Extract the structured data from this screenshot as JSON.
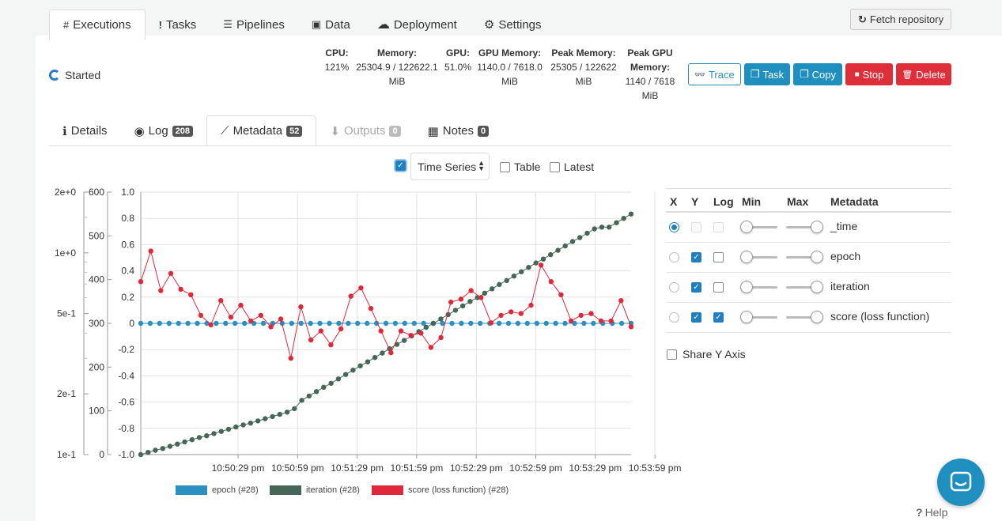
{
  "nav_tabs": [
    {
      "label": "Executions",
      "icon": "#"
    },
    {
      "label": "Tasks",
      "icon": "!"
    },
    {
      "label": "Pipelines",
      "icon": "☰"
    },
    {
      "label": "Data",
      "icon": "▣"
    },
    {
      "label": "Deployment",
      "icon": "☁"
    },
    {
      "label": "Settings",
      "icon": "⚙"
    }
  ],
  "fetch_button": {
    "label": "Fetch repository",
    "icon": "↻"
  },
  "status": {
    "label": "Started"
  },
  "stats": [
    {
      "label": "CPU:",
      "value": "121%"
    },
    {
      "label": "Memory:",
      "value": "25304.9 / 122622.1 MiB"
    },
    {
      "label": "GPU:",
      "value": "51.0%"
    },
    {
      "label": "GPU Memory:",
      "value": "1140.0 / 7618.0 MiB"
    },
    {
      "label": "Peak Memory:",
      "value": "25305 / 122622 MiB"
    },
    {
      "label": "Peak GPU Memory:",
      "value": "1140 / 7618 MiB"
    }
  ],
  "actions": {
    "trace": {
      "label": "Trace",
      "icon": "👓"
    },
    "task": {
      "label": "Task",
      "icon": "❐"
    },
    "copy": {
      "label": "Copy",
      "icon": "❐"
    },
    "stop": {
      "label": "Stop",
      "icon": "■"
    },
    "delete": {
      "label": "Delete",
      "icon": "🗑"
    }
  },
  "sub_tabs": [
    {
      "label": "Details",
      "icon": "ℹ",
      "badge": null
    },
    {
      "label": "Log",
      "icon": "◉",
      "badge": "208"
    },
    {
      "label": "Metadata",
      "icon": "⟋",
      "badge": "52"
    },
    {
      "label": "Outputs",
      "icon": "⬇",
      "badge": "0"
    },
    {
      "label": "Notes",
      "icon": "▦",
      "badge": "0"
    }
  ],
  "view": {
    "timeseries_checked": true,
    "mode": "Time Series",
    "table_label": "Table",
    "latest_label": "Latest"
  },
  "metadata_table": {
    "headers": {
      "x": "X",
      "y": "Y",
      "log": "Log",
      "min": "Min",
      "max": "Max",
      "metadata": "Metadata"
    },
    "rows": [
      {
        "name": "_time",
        "x": true,
        "y": false,
        "log": false
      },
      {
        "name": "epoch",
        "x": false,
        "y": true,
        "log": false
      },
      {
        "name": "iteration",
        "x": false,
        "y": true,
        "log": false
      },
      {
        "name": "score (loss function)",
        "x": false,
        "y": true,
        "log": true
      }
    ],
    "share_y_axis": "Share Y Axis"
  },
  "help": {
    "label": "Help"
  },
  "colors": {
    "epoch": "#2b90c0",
    "iteration": "#466758",
    "score": "#e0283b",
    "accent": "#1f8fc0",
    "danger": "#dd2e3a"
  },
  "chart_data": {
    "type": "line",
    "x_ticks": [
      "10:50:29 pm",
      "10:50:59 pm",
      "10:51:29 pm",
      "10:51:59 pm",
      "10:52:29 pm",
      "10:52:59 pm",
      "10:53:29 pm",
      "10:53:59 pm"
    ],
    "x_range_seconds": [
      -20,
      227
    ],
    "x_tick_seconds": [
      29,
      59,
      89,
      119,
      149,
      179,
      209,
      239
    ],
    "axes": [
      {
        "name": "score",
        "ticks": [
          "2e+0",
          "1e+0",
          "5e-1",
          "2e-1",
          "1e-1"
        ],
        "tick_values": [
          2,
          1,
          0.5,
          0.2,
          0.1
        ],
        "scale": "log",
        "range": [
          0.1,
          2
        ]
      },
      {
        "name": "iteration",
        "ticks": [
          "600",
          "500",
          "400",
          "300",
          "200",
          "100",
          "0"
        ],
        "range": [
          0,
          600
        ]
      },
      {
        "name": "epoch",
        "ticks": [
          "1.0",
          "0.8",
          "0.6",
          "0.4",
          "0.2",
          "0",
          "-0.2",
          "-0.4",
          "-0.6",
          "-0.8",
          "-1.0"
        ],
        "range": [
          -1,
          1
        ]
      }
    ],
    "grid": true,
    "legend": "bottom",
    "series": [
      {
        "name": "epoch (#28)",
        "axis": "epoch",
        "values": [
          0,
          0,
          0,
          0,
          0,
          0,
          0,
          0,
          0,
          0,
          0,
          0,
          0,
          0,
          0,
          0,
          0,
          0,
          0,
          0,
          0,
          0,
          0,
          0,
          0,
          0,
          0,
          0,
          0,
          0,
          0,
          0,
          0,
          0,
          0,
          0,
          0,
          0,
          0,
          0,
          0,
          0,
          0,
          0,
          0,
          0,
          0,
          0,
          0,
          0,
          0,
          0,
          0
        ]
      },
      {
        "name": "iteration (#28)",
        "axis": "iteration",
        "values": [
          0,
          5,
          10,
          14,
          19,
          24,
          29,
          34,
          39,
          43,
          48,
          53,
          58,
          63,
          68,
          72,
          77,
          82,
          87,
          92,
          97,
          105,
          124,
          134,
          144,
          154,
          163,
          173,
          183,
          193,
          203,
          212,
          222,
          232,
          242,
          252,
          261,
          271,
          281,
          291,
          300,
          310,
          320,
          330,
          340,
          350,
          359,
          369,
          379,
          389,
          398,
          408,
          418,
          428,
          438,
          447,
          457,
          467,
          477,
          487,
          496,
          506,
          516,
          520,
          520,
          530,
          540,
          550
        ]
      },
      {
        "name": "score (loss function) (#28)",
        "axis": "score",
        "values": [
          0.72,
          1.02,
          0.65,
          0.79,
          0.66,
          0.62,
          0.49,
          0.44,
          0.58,
          0.48,
          0.55,
          0.46,
          0.49,
          0.43,
          0.47,
          0.3,
          0.54,
          0.37,
          0.41,
          0.35,
          0.42,
          0.61,
          0.67,
          0.53,
          0.41,
          0.32,
          0.41,
          0.39,
          0.4,
          0.34,
          0.38,
          0.57,
          0.59,
          0.65,
          0.6,
          0.45,
          0.49,
          0.51,
          0.5,
          0.55,
          0.87,
          0.72,
          0.62,
          0.46,
          0.49,
          0.5,
          0.46,
          0.46,
          0.58,
          0.43
        ]
      }
    ]
  }
}
